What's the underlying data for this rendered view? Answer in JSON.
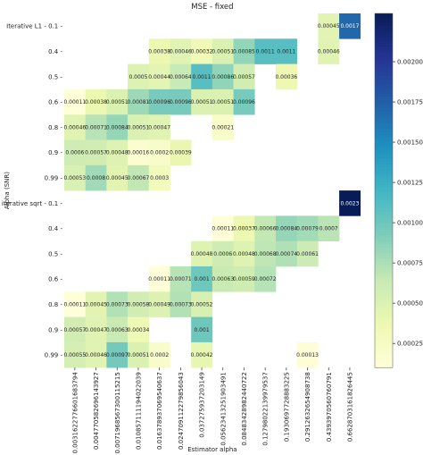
{
  "chart_data": {
    "type": "heatmap",
    "title": "MSE - fixed",
    "xlabel": "Estimator alpha",
    "ylabel": "Alpha (SNR)",
    "x": [
      "0.0031622776601683794",
      "0.004770582696143927",
      "0.0071968567300115215",
      "0.010857111194022039",
      "0.016378937069540637",
      "0.024709112279856043",
      "0.037275937203149",
      "0.05623413251903491",
      "0.08483428982440722",
      "0.12798022139979537",
      "0.1930697728883225",
      "0.2912632654908738",
      "0.4393970560760791",
      "0.6628703161826445"
    ],
    "groups": [
      "Iterative L1",
      "iterative sqrt"
    ],
    "rows": [
      {
        "group": "Iterative L1",
        "label": "0.1",
        "values": [
          null,
          null,
          null,
          null,
          null,
          null,
          null,
          null,
          null,
          null,
          null,
          null,
          0.00045,
          0.0017
        ]
      },
      {
        "group": "Iterative L1",
        "label": "0.4",
        "values": [
          null,
          null,
          null,
          null,
          0.00038,
          0.00046,
          0.00032,
          0.00051,
          0.00085,
          0.0011,
          0.0011,
          null,
          0.00046,
          null
        ]
      },
      {
        "group": "Iterative L1",
        "label": "0.5",
        "values": [
          null,
          null,
          null,
          0.0005,
          0.00044,
          0.00064,
          0.0011,
          0.00086,
          0.00057,
          null,
          0.00036,
          null,
          null,
          null
        ]
      },
      {
        "group": "Iterative L1",
        "label": "0.6",
        "values": [
          0.00011,
          0.00038,
          0.00051,
          0.00081,
          0.00096,
          0.00096,
          0.00051,
          0.00051,
          0.00096,
          null,
          null,
          null,
          null,
          null
        ]
      },
      {
        "group": "Iterative L1",
        "label": "0.8",
        "values": [
          0.00046,
          0.00071,
          0.00084,
          0.00051,
          0.00047,
          null,
          null,
          0.00021,
          null,
          null,
          null,
          null,
          null,
          null
        ]
      },
      {
        "group": "Iterative L1",
        "label": "0.9",
        "values": [
          0.0006,
          0.00057,
          0.00048,
          0.00016,
          0.0002,
          0.00039,
          null,
          null,
          null,
          null,
          null,
          null,
          null,
          null
        ]
      },
      {
        "group": "Iterative L1",
        "label": "0.99",
        "values": [
          0.00053,
          0.0008,
          0.00045,
          0.00067,
          0.0003,
          null,
          null,
          null,
          null,
          null,
          null,
          null,
          null,
          null
        ]
      },
      {
        "group": "iterative sqrt",
        "label": "0.1",
        "values": [
          null,
          null,
          null,
          null,
          null,
          null,
          null,
          null,
          null,
          null,
          null,
          null,
          null,
          0.0023
        ]
      },
      {
        "group": "iterative sqrt",
        "label": "0.4",
        "values": [
          null,
          null,
          null,
          null,
          null,
          null,
          null,
          0.00011,
          0.00037,
          0.00066,
          0.00084,
          0.00079,
          0.0007,
          null
        ]
      },
      {
        "group": "iterative sqrt",
        "label": "0.5",
        "values": [
          null,
          null,
          null,
          null,
          null,
          null,
          0.00048,
          0.0006,
          0.00048,
          0.00068,
          0.00074,
          0.00061,
          null,
          null
        ]
      },
      {
        "group": "iterative sqrt",
        "label": "0.6",
        "values": [
          null,
          null,
          null,
          null,
          0.00011,
          0.00071,
          0.001,
          0.00063,
          0.00059,
          0.00072,
          null,
          null,
          null,
          null
        ]
      },
      {
        "group": "iterative sqrt",
        "label": "0.8",
        "values": [
          0.00011,
          0.00045,
          0.00073,
          0.00058,
          0.00049,
          0.00073,
          0.00052,
          null,
          null,
          null,
          null,
          null,
          null,
          null
        ]
      },
      {
        "group": "iterative sqrt",
        "label": "0.9",
        "values": [
          0.00057,
          0.00047,
          0.00063,
          0.00034,
          null,
          null,
          0.001,
          null,
          null,
          null,
          null,
          null,
          null,
          null
        ]
      },
      {
        "group": "iterative sqrt",
        "label": "0.99",
        "values": [
          0.00055,
          0.00046,
          0.00097,
          0.00051,
          0.0002,
          null,
          0.00042,
          null,
          null,
          null,
          null,
          0.00013,
          null,
          null
        ]
      }
    ],
    "colorbar": {
      "colormap": "YlGnBu",
      "vmin": 0.0001,
      "vmax": 0.0023,
      "ticks": [
        0.00025,
        0.0005,
        0.00075,
        0.001,
        0.00125,
        0.0015,
        0.00175,
        0.002
      ],
      "tick_labels": [
        "0.00025",
        "0.00050",
        "0.00075",
        "0.00100",
        "0.00125",
        "0.00150",
        "0.00175",
        "0.00200"
      ]
    },
    "grid": false
  }
}
